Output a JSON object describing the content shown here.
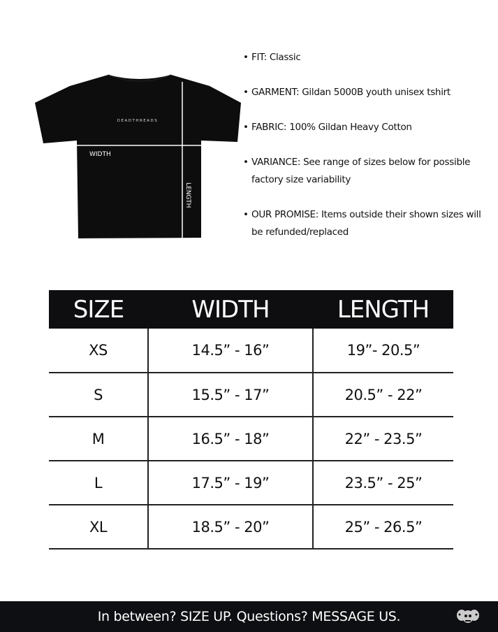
{
  "shirt": {
    "brand": "DEADTHREADS",
    "width_label": "WIDTH",
    "length_label": "LENGTH"
  },
  "specs": [
    {
      "text": "FIT: Classic"
    },
    {
      "text": "GARMENT: Gildan 5000B youth unisex tshirt"
    },
    {
      "text": "FABRIC: 100% Gildan Heavy Cotton"
    },
    {
      "text": "VARIANCE: See range of sizes below for possible factory size variability"
    },
    {
      "text": "OUR PROMISE: Items outside their shown sizes will be refunded/replaced"
    }
  ],
  "table": {
    "headers": [
      "SIZE",
      "WIDTH",
      "LENGTH"
    ],
    "rows": [
      [
        "XS",
        "14.5” - 16”",
        "19”- 20.5”"
      ],
      [
        "S",
        "15.5” - 17”",
        "20.5” - 22”"
      ],
      [
        "M",
        "16.5” - 18”",
        "22” - 23.5”"
      ],
      [
        "L",
        "17.5” - 19”",
        "23.5” - 25”"
      ],
      [
        "XL",
        "18.5” - 20”",
        "25” - 26.5”"
      ]
    ]
  },
  "footer": {
    "text": "In between? SIZE UP. Questions? MESSAGE US.",
    "logo": "skulls-logo-icon"
  }
}
